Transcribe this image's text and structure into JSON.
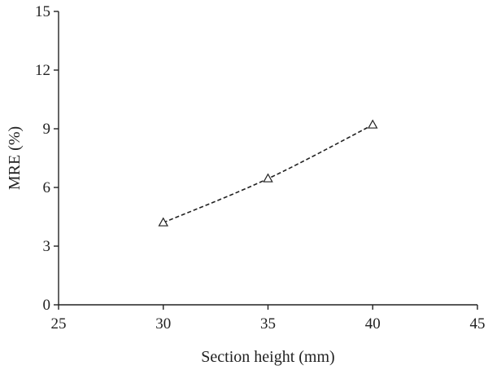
{
  "chart_data": {
    "type": "line",
    "title": "",
    "xlabel": "Section height (mm)",
    "ylabel": "MRE (%)",
    "xlim": [
      25,
      45
    ],
    "ylim": [
      0,
      15
    ],
    "xticks": [
      25,
      30,
      35,
      40,
      45
    ],
    "yticks": [
      0,
      3,
      6,
      9,
      12,
      15
    ],
    "grid": false,
    "legend": "none",
    "series": [
      {
        "marker": "triangle-open",
        "line_style": "dashed",
        "color": "#222222",
        "x": [
          30,
          35,
          40
        ],
        "y": [
          4.2,
          6.45,
          9.2
        ]
      }
    ]
  }
}
